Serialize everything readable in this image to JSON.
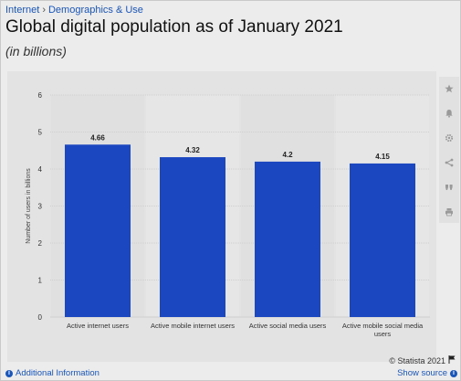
{
  "breadcrumb": {
    "items": [
      "Internet",
      "Demographics & Use"
    ],
    "separator": "›"
  },
  "title": "Global digital population as of January 2021",
  "subtitle": "(in billions)",
  "toolbar": {
    "icons": [
      "star-icon",
      "bell-icon",
      "gear-icon",
      "share-icon",
      "quote-icon",
      "print-icon"
    ]
  },
  "credit": {
    "text": "© Statista 2021",
    "icon": "flag-icon"
  },
  "footer": {
    "additional_info": "Additional Information",
    "show_source": "Show source"
  },
  "colors": {
    "bar": "#1b47c1",
    "link": "#1a55b8",
    "grid": "#cfcfcf"
  },
  "chart_data": {
    "type": "bar",
    "categories": [
      "Active internet users",
      "Active mobile internet users",
      "Active social media users",
      "Active mobile social media users"
    ],
    "values": [
      4.66,
      4.32,
      4.2,
      4.15
    ],
    "data_labels": [
      "4.66",
      "4.32",
      "4.2",
      "4.15"
    ],
    "ylabel": "Number of users in billions",
    "xlabel": "",
    "ylim": [
      0,
      6
    ],
    "yticks": [
      0,
      1,
      2,
      3,
      4,
      5,
      6
    ],
    "grid": true
  }
}
